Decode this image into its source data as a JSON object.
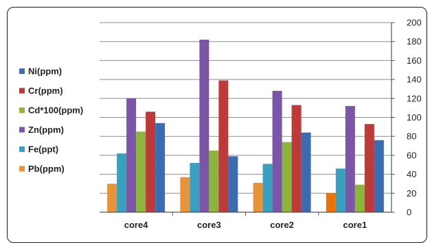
{
  "chart_data": {
    "type": "bar",
    "title": "",
    "xlabel": "",
    "ylabel": "",
    "categories": [
      "core4",
      "core3",
      "core2",
      "core1"
    ],
    "ylim": [
      0,
      200
    ],
    "ytick_step": 20,
    "y_axis_side": "right",
    "grid": "horizontal",
    "legend_position": "left",
    "series": [
      {
        "name": "Pb(ppm)",
        "color": "#e8943a",
        "values": [
          30,
          37,
          31,
          20
        ]
      },
      {
        "name": "Fe(ppt)",
        "color": "#3aa0be",
        "values": [
          62,
          52,
          51,
          46
        ]
      },
      {
        "name": "Zn(ppm)",
        "color": "#7b56a6",
        "values": [
          120,
          182,
          128,
          112
        ]
      },
      {
        "name": "Cd*100(ppm)",
        "color": "#8cb43f",
        "values": [
          85,
          65,
          74,
          29
        ]
      },
      {
        "name": "Cr(ppm)",
        "color": "#bc3a3a",
        "values": [
          106,
          139,
          113,
          93
        ]
      },
      {
        "name": "Ni(ppm)",
        "color": "#3d6bb0",
        "values": [
          94,
          59,
          84,
          76
        ]
      }
    ],
    "highlight": {
      "category": "core1",
      "series": "Pb(ppm)",
      "color": "#e8720c"
    },
    "legend_order": [
      "Ni(ppm)",
      "Cr(ppm)",
      "Cd*100(ppm)",
      "Zn(ppm)",
      "Fe(ppt)",
      "Pb(ppm)"
    ]
  }
}
